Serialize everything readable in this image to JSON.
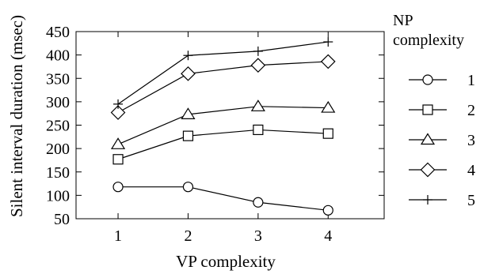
{
  "chart_data": {
    "type": "line",
    "xlabel": "VP complexity",
    "ylabel": "Silent interval duration (msec)",
    "x": [
      1,
      2,
      3,
      4
    ],
    "xlim": [
      0.4,
      4.8
    ],
    "ylim": [
      50,
      450
    ],
    "yticks": [
      50,
      100,
      150,
      200,
      250,
      300,
      350,
      400,
      450
    ],
    "xticks": [
      1,
      2,
      3,
      4
    ],
    "legend_title_lines": [
      "NP",
      "complexity"
    ],
    "legend_position": "right",
    "grid": false,
    "series": [
      {
        "name": "1",
        "marker": "circle",
        "values": [
          118,
          118,
          85,
          68
        ]
      },
      {
        "name": "2",
        "marker": "square",
        "values": [
          177,
          227,
          240,
          232
        ]
      },
      {
        "name": "3",
        "marker": "triangle",
        "values": [
          209,
          273,
          290,
          287
        ]
      },
      {
        "name": "4",
        "marker": "diamond",
        "values": [
          277,
          360,
          378,
          386
        ]
      },
      {
        "name": "5",
        "marker": "plus",
        "values": [
          295,
          399,
          408,
          428
        ]
      }
    ]
  }
}
